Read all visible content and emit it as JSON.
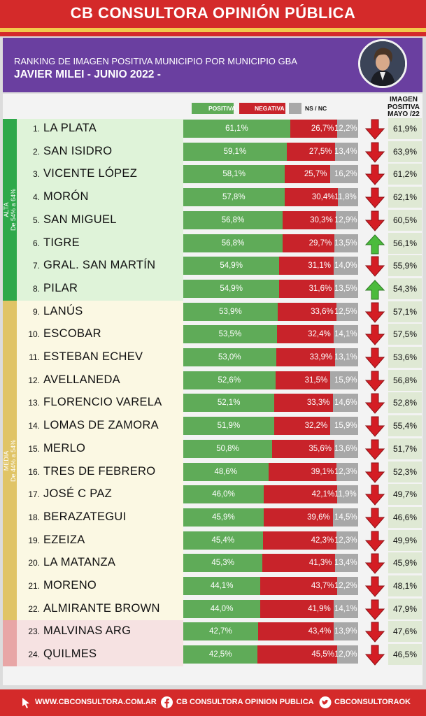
{
  "header": {
    "brand": "CB CONSULTORA OPINIÓN PÚBLICA",
    "subtitle": "RANKING DE IMAGEN POSITIVA MUNICIPIO POR MUNICIPIO GBA",
    "title": "JAVIER MILEI - JUNIO 2022 -"
  },
  "legend": {
    "positiva": "POSITIVA",
    "negativa": "NEGATIVA",
    "ns": "NS / NC"
  },
  "image_header": [
    "IMAGEN",
    "POSITIVA",
    "MAYO /22"
  ],
  "groups": [
    {
      "name": "ALTA",
      "range": "De 54% a 64%"
    },
    {
      "name": "MEDIA",
      "range": "De 44% a 54%"
    }
  ],
  "colors": {
    "positiva": "#5fab58",
    "negativa": "#c8232a",
    "ns": "#a8a8a8",
    "brand_red": "#d42a2a",
    "header_purple": "#6a3fa0",
    "alta_band": "#dff3d9",
    "alta_side": "#2ea84a",
    "media_band": "#fbf8e3",
    "media_side": "#e0c466",
    "baja_band": "#f6e2e2",
    "baja_side": "#e8a6a6"
  },
  "chart_data": {
    "type": "bar",
    "stacked": true,
    "orientation": "horizontal",
    "series_names": [
      "POSITIVA",
      "NEGATIVA",
      "NS / NC"
    ],
    "rows": [
      {
        "rank": "1.",
        "name": "LA PLATA",
        "pos": "61,1%",
        "neg": "26,7%",
        "ns": "12,2%",
        "may": "61,9%",
        "trend": "down"
      },
      {
        "rank": "2.",
        "name": "SAN ISIDRO",
        "pos": "59,1%",
        "neg": "27,5%",
        "ns": "13,4%",
        "may": "63,9%",
        "trend": "down"
      },
      {
        "rank": "3.",
        "name": "VICENTE LÓPEZ",
        "pos": "58,1%",
        "neg": "25,7%",
        "ns": "16,2%",
        "may": "61,2%",
        "trend": "down"
      },
      {
        "rank": "4.",
        "name": "MORÓN",
        "pos": "57,8%",
        "neg": "30,4%",
        "ns": "11,8%",
        "may": "62,1%",
        "trend": "down"
      },
      {
        "rank": "5.",
        "name": "SAN MIGUEL",
        "pos": "56,8%",
        "neg": "30,3%",
        "ns": "12,9%",
        "may": "60,5%",
        "trend": "down"
      },
      {
        "rank": "6.",
        "name": "TIGRE",
        "pos": "56,8%",
        "neg": "29,7%",
        "ns": "13,5%",
        "may": "56,1%",
        "trend": "up"
      },
      {
        "rank": "7.",
        "name": "GRAL. SAN MARTÍN",
        "pos": "54,9%",
        "neg": "31,1%",
        "ns": "14,0%",
        "may": "55,9%",
        "trend": "down"
      },
      {
        "rank": "8.",
        "name": "PILAR",
        "pos": "54,9%",
        "neg": "31,6%",
        "ns": "13,5%",
        "may": "54,3%",
        "trend": "up"
      },
      {
        "rank": "9.",
        "name": "LANÚS",
        "pos": "53,9%",
        "neg": "33,6%",
        "ns": "12,5%",
        "may": "57,1%",
        "trend": "down"
      },
      {
        "rank": "10.",
        "name": "ESCOBAR",
        "pos": "53,5%",
        "neg": "32,4%",
        "ns": "14,1%",
        "may": "57,5%",
        "trend": "down"
      },
      {
        "rank": "11.",
        "name": "ESTEBAN ECHEV",
        "pos": "53,0%",
        "neg": "33,9%",
        "ns": "13,1%",
        "may": "53,6%",
        "trend": "down"
      },
      {
        "rank": "12.",
        "name": "AVELLANEDA",
        "pos": "52,6%",
        "neg": "31,5%",
        "ns": "15,9%",
        "may": "56,8%",
        "trend": "down"
      },
      {
        "rank": "13.",
        "name": "FLORENCIO VARELA",
        "pos": "52,1%",
        "neg": "33,3%",
        "ns": "14,6%",
        "may": "52,8%",
        "trend": "down"
      },
      {
        "rank": "14.",
        "name": "LOMAS DE ZAMORA",
        "pos": "51,9%",
        "neg": "32,2%",
        "ns": "15,9%",
        "may": "55,4%",
        "trend": "down"
      },
      {
        "rank": "15.",
        "name": "MERLO",
        "pos": "50,8%",
        "neg": "35,6%",
        "ns": "13,6%",
        "may": "51,7%",
        "trend": "down"
      },
      {
        "rank": "16.",
        "name": "TRES DE FEBRERO",
        "pos": "48,6%",
        "neg": "39,1%",
        "ns": "12,3%",
        "may": "52,3%",
        "trend": "down"
      },
      {
        "rank": "17.",
        "name": "JOSÉ C PAZ",
        "pos": "46,0%",
        "neg": "42,1%",
        "ns": "11,9%",
        "may": "49,7%",
        "trend": "down"
      },
      {
        "rank": "18.",
        "name": "BERAZATEGUI",
        "pos": "45,9%",
        "neg": "39,6%",
        "ns": "14,5%",
        "may": "46,6%",
        "trend": "down"
      },
      {
        "rank": "19.",
        "name": "EZEIZA",
        "pos": "45,4%",
        "neg": "42,3%",
        "ns": "12,3%",
        "may": "49,9%",
        "trend": "down"
      },
      {
        "rank": "20.",
        "name": "LA MATANZA",
        "pos": "45,3%",
        "neg": "41,3%",
        "ns": "13,4%",
        "may": "45,9%",
        "trend": "down"
      },
      {
        "rank": "21.",
        "name": "MORENO",
        "pos": "44,1%",
        "neg": "43,7%",
        "ns": "12,2%",
        "may": "48,1%",
        "trend": "down"
      },
      {
        "rank": "22.",
        "name": "ALMIRANTE BROWN",
        "pos": "44,0%",
        "neg": "41,9%",
        "ns": "14,1%",
        "may": "47,9%",
        "trend": "down"
      },
      {
        "rank": "23.",
        "name": "MALVINAS ARG",
        "pos": "42,7%",
        "neg": "43,4%",
        "ns": "13,9%",
        "may": "47,6%",
        "trend": "down"
      },
      {
        "rank": "24.",
        "name": "QUILMES",
        "pos": "42,5%",
        "neg": "45,5%",
        "ns": "12,0%",
        "may": "46,5%",
        "trend": "down"
      }
    ]
  },
  "footer": {
    "web": "WWW.CBCONSULTORA.COM.AR",
    "facebook": "CB CONSULTORA OPINION PUBLICA",
    "twitter": "CBCONSULTORAOK"
  }
}
